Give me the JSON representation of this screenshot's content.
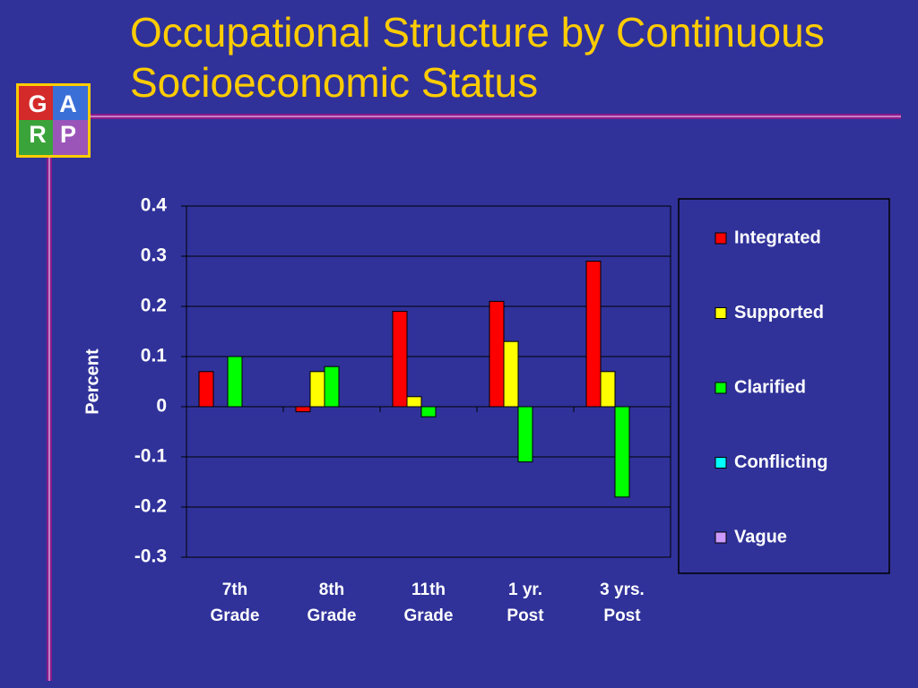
{
  "logo": [
    "G",
    "A",
    "R",
    "P"
  ],
  "chart_data": {
    "type": "bar",
    "title": "Occupational Structure by Continuous Socioeconomic Status",
    "y_label": "Percent",
    "categories": [
      "7th Grade",
      "8th Grade",
      "11th Grade",
      "1 yr. Post",
      "3 yrs. Post"
    ],
    "series": [
      {
        "name": "Integrated",
        "color": "#ff0000",
        "values": [
          0.07,
          -0.01,
          0.19,
          0.21,
          0.29
        ]
      },
      {
        "name": "Supported",
        "color": "#ffff00",
        "values": [
          0,
          0.07,
          0.02,
          0.13,
          0.07
        ]
      },
      {
        "name": "Clarified",
        "color": "#00ff00",
        "values": [
          0.1,
          0.08,
          -0.02,
          -0.11,
          -0.18
        ]
      },
      {
        "name": "Conflicting",
        "color": "#00ffff",
        "values": [
          0,
          0,
          0,
          0,
          0
        ]
      },
      {
        "name": "Vague",
        "color": "#cc99ff",
        "values": [
          0,
          0,
          0,
          0,
          0
        ]
      }
    ],
    "ylim": [
      -0.3,
      0.4
    ],
    "yticks": [
      0.4,
      0.3,
      0.2,
      0.1,
      0,
      -0.1,
      -0.2,
      -0.3
    ],
    "grid": true,
    "legend": "right"
  }
}
